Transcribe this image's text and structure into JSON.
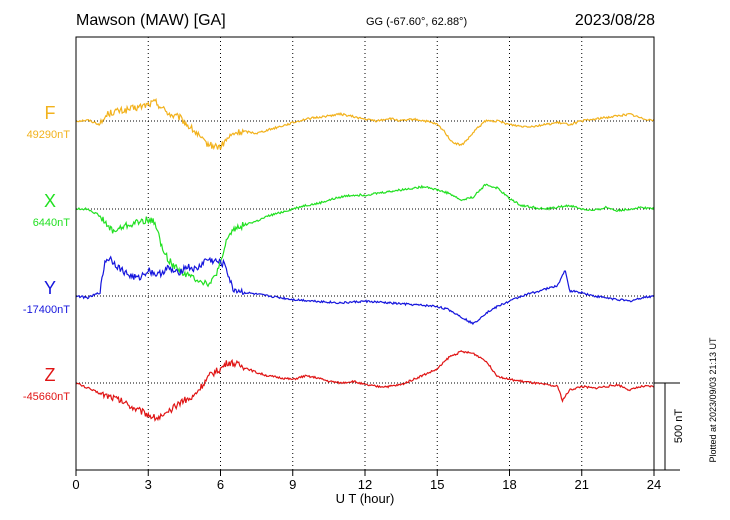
{
  "header": {
    "station": "Mawson (MAW)  [GA]",
    "coords": "GG (-67.60°,  62.88°)",
    "date": "2023/08/28"
  },
  "axis": {
    "xlabel": "U T (hour)",
    "ticks": [
      "0",
      "3",
      "6",
      "9",
      "12",
      "15",
      "18",
      "21",
      "24"
    ]
  },
  "side": {
    "plotted": "Plotted at 2023/09/03 21:13 UT",
    "scale_label": "500 nT",
    "scale_nt": 500
  },
  "chart_data": {
    "type": "line",
    "title": "Mawson (MAW)  [GA]",
    "xlabel": "U T (hour)",
    "ylabel": "",
    "xlim": [
      0,
      24
    ],
    "x_ticks": [
      0,
      3,
      6,
      9,
      12,
      15,
      18,
      21,
      24
    ],
    "grid": true,
    "series": [
      {
        "name": "F",
        "baseline_label": "49290nT",
        "baseline_nT": 49290,
        "color": "#f2b21d",
        "x": [
          0,
          0.5,
          1,
          1.3,
          1.6,
          2,
          2.5,
          3,
          3.3,
          3.7,
          4,
          4.3,
          4.6,
          5,
          5.3,
          5.6,
          6,
          6.3,
          6.6,
          7,
          7.5,
          8,
          8.5,
          9,
          9.5,
          10,
          10.5,
          11,
          11.5,
          12,
          12.5,
          13,
          13.5,
          14,
          14.5,
          15,
          15.3,
          15.6,
          16,
          16.3,
          16.6,
          17,
          17.5,
          18,
          18.5,
          19,
          19.5,
          20,
          20.5,
          21,
          21.5,
          22,
          22.5,
          23,
          23.5,
          24
        ],
        "y": [
          0,
          5,
          -20,
          40,
          55,
          60,
          75,
          95,
          110,
          60,
          30,
          20,
          -20,
          -70,
          -120,
          -140,
          -150,
          -100,
          -70,
          -60,
          -70,
          -50,
          -30,
          -10,
          10,
          20,
          30,
          40,
          25,
          10,
          0,
          15,
          0,
          10,
          0,
          -20,
          -60,
          -120,
          -140,
          -100,
          -50,
          0,
          0,
          -20,
          -30,
          -30,
          -20,
          -10,
          -20,
          0,
          10,
          20,
          30,
          40,
          15,
          5
        ]
      },
      {
        "name": "X",
        "baseline_label": "6440nT",
        "baseline_nT": 6440,
        "color": "#22e022",
        "x": [
          0,
          0.5,
          1,
          1.3,
          1.6,
          2,
          2.5,
          3,
          3.3,
          3.6,
          4,
          4.3,
          4.6,
          5,
          5.3,
          5.6,
          6,
          6.3,
          6.6,
          7,
          7.5,
          8,
          8.5,
          9,
          9.5,
          10,
          10.5,
          11,
          11.5,
          12,
          12.5,
          13,
          13.5,
          14,
          14.5,
          15,
          15.5,
          16,
          16.5,
          17,
          17.5,
          18,
          18.5,
          19,
          19.5,
          20,
          20.5,
          21,
          21.5,
          22,
          22.5,
          23,
          23.5,
          24
        ],
        "y": [
          0,
          0,
          -40,
          -100,
          -130,
          -100,
          -80,
          -60,
          -80,
          -240,
          -320,
          -350,
          -380,
          -400,
          -420,
          -430,
          -320,
          -160,
          -110,
          -90,
          -70,
          -40,
          -20,
          0,
          20,
          30,
          50,
          70,
          80,
          80,
          90,
          100,
          110,
          120,
          130,
          110,
          90,
          50,
          70,
          140,
          120,
          60,
          20,
          10,
          0,
          10,
          20,
          0,
          -10,
          10,
          -10,
          0,
          10,
          0
        ]
      },
      {
        "name": "Y",
        "baseline_label": "-17400nT",
        "baseline_nT": -17400,
        "color": "#1515dd",
        "x": [
          0,
          0.5,
          1,
          1.2,
          1.4,
          1.8,
          2.2,
          2.6,
          3,
          3.4,
          3.8,
          4.2,
          4.6,
          5,
          5.4,
          5.8,
          6.2,
          6.5,
          7,
          7.5,
          8,
          9,
          10,
          11,
          12,
          13,
          14,
          15,
          15.5,
          16,
          16.5,
          17,
          17.5,
          18,
          18.5,
          19,
          19.5,
          20,
          20.3,
          20.5,
          21,
          21.5,
          22,
          22.5,
          23,
          23.5,
          24
        ],
        "y": [
          0,
          -10,
          20,
          200,
          220,
          160,
          120,
          100,
          150,
          120,
          160,
          130,
          170,
          150,
          210,
          200,
          180,
          40,
          20,
          10,
          0,
          -20,
          -30,
          -40,
          -30,
          -40,
          -50,
          -60,
          -80,
          -120,
          -160,
          -100,
          -60,
          -30,
          0,
          20,
          40,
          60,
          150,
          30,
          20,
          0,
          -10,
          -20,
          -30,
          -10,
          0
        ]
      },
      {
        "name": "Z",
        "baseline_label": "-45660nT",
        "baseline_nT": -45660,
        "color": "#e01515",
        "x": [
          0,
          0.5,
          1,
          1.5,
          2,
          2.5,
          3,
          3.3,
          3.7,
          4,
          4.4,
          4.8,
          5.2,
          5.6,
          6,
          6.3,
          6.6,
          7,
          7.5,
          8,
          8.5,
          9,
          9.5,
          10,
          10.5,
          11,
          11.5,
          12,
          12.5,
          13,
          13.5,
          14,
          14.5,
          15,
          15.5,
          16,
          16.5,
          17,
          17.5,
          18,
          18.5,
          19,
          19.5,
          20,
          20.2,
          20.5,
          21,
          21.5,
          22,
          22.5,
          23,
          23.5,
          24
        ],
        "y": [
          0,
          -30,
          -60,
          -80,
          -110,
          -150,
          -180,
          -200,
          -190,
          -150,
          -100,
          -90,
          -20,
          50,
          80,
          120,
          110,
          90,
          60,
          40,
          30,
          20,
          40,
          30,
          10,
          0,
          10,
          -10,
          -20,
          -20,
          -10,
          20,
          50,
          80,
          150,
          180,
          170,
          130,
          40,
          20,
          10,
          0,
          -10,
          -20,
          -100,
          -40,
          -20,
          -30,
          -20,
          -10,
          -40,
          -20,
          -20
        ]
      }
    ]
  }
}
